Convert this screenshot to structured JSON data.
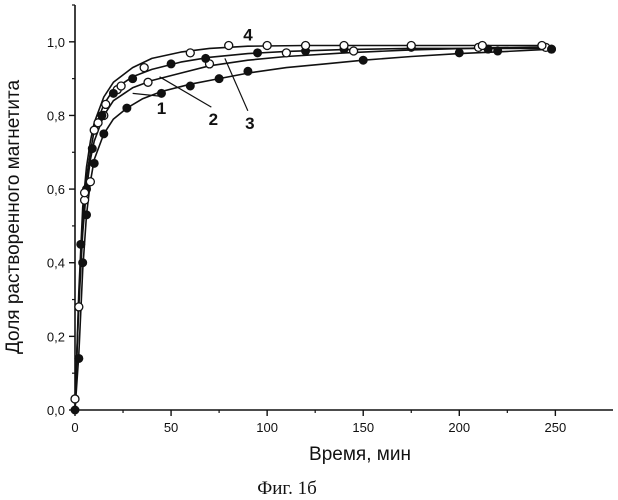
{
  "chart_data": {
    "type": "line",
    "xlabel": "Время, мин",
    "ylabel": "Доля растворенного магнетита",
    "caption": "Фиг. 1б",
    "xlim": [
      0,
      280
    ],
    "ylim": [
      0,
      1.1
    ],
    "x_ticks": [
      0,
      50,
      100,
      150,
      200,
      250
    ],
    "y_ticks": [
      0.0,
      0.2,
      0.4,
      0.6,
      0.8,
      1.0
    ],
    "x_tick_labels": [
      "0",
      "50",
      "100",
      "150",
      "200",
      "250"
    ],
    "y_tick_labels": [
      "0,0",
      "0,2",
      "0,4",
      "0,6",
      "0,8",
      "1,0"
    ],
    "grid": false,
    "series": [
      {
        "name": "1",
        "marker": "filled",
        "points": [
          [
            0,
            0.0
          ],
          [
            2,
            0.14
          ],
          [
            4,
            0.4
          ],
          [
            6,
            0.53
          ],
          [
            10,
            0.67
          ],
          [
            15,
            0.75
          ],
          [
            27,
            0.82
          ],
          [
            45,
            0.86
          ],
          [
            60,
            0.88
          ],
          [
            75,
            0.9
          ],
          [
            90,
            0.92
          ],
          [
            150,
            0.95
          ],
          [
            200,
            0.97
          ],
          [
            220,
            0.975
          ],
          [
            248,
            0.98
          ]
        ],
        "curve": [
          [
            0,
            0.0
          ],
          [
            2,
            0.15
          ],
          [
            4,
            0.38
          ],
          [
            6,
            0.53
          ],
          [
            8,
            0.62
          ],
          [
            10,
            0.68
          ],
          [
            15,
            0.75
          ],
          [
            20,
            0.79
          ],
          [
            27,
            0.82
          ],
          [
            35,
            0.845
          ],
          [
            45,
            0.865
          ],
          [
            60,
            0.885
          ],
          [
            75,
            0.9
          ],
          [
            90,
            0.915
          ],
          [
            110,
            0.93
          ],
          [
            130,
            0.94
          ],
          [
            150,
            0.95
          ],
          [
            175,
            0.96
          ],
          [
            200,
            0.968
          ],
          [
            225,
            0.974
          ],
          [
            248,
            0.98
          ]
        ]
      },
      {
        "name": "2",
        "marker": "open",
        "points": [
          [
            0,
            0.03
          ],
          [
            2,
            0.28
          ],
          [
            5,
            0.57
          ],
          [
            8,
            0.62
          ],
          [
            12,
            0.78
          ],
          [
            15,
            0.8
          ],
          [
            22,
            0.87
          ],
          [
            38,
            0.89
          ],
          [
            70,
            0.94
          ],
          [
            110,
            0.97
          ],
          [
            145,
            0.975
          ],
          [
            210,
            0.985
          ],
          [
            245,
            0.985
          ]
        ],
        "curve": [
          [
            0,
            0.03
          ],
          [
            2,
            0.28
          ],
          [
            4,
            0.48
          ],
          [
            6,
            0.6
          ],
          [
            8,
            0.68
          ],
          [
            10,
            0.73
          ],
          [
            15,
            0.8
          ],
          [
            20,
            0.84
          ],
          [
            30,
            0.875
          ],
          [
            40,
            0.895
          ],
          [
            55,
            0.915
          ],
          [
            70,
            0.935
          ],
          [
            90,
            0.95
          ],
          [
            110,
            0.96
          ],
          [
            140,
            0.97
          ],
          [
            175,
            0.978
          ],
          [
            210,
            0.983
          ],
          [
            245,
            0.986
          ]
        ]
      },
      {
        "name": "3",
        "marker": "filled",
        "points": [
          [
            3,
            0.45
          ],
          [
            6,
            0.6
          ],
          [
            9,
            0.71
          ],
          [
            14,
            0.8
          ],
          [
            20,
            0.86
          ],
          [
            30,
            0.9
          ],
          [
            50,
            0.94
          ],
          [
            68,
            0.955
          ],
          [
            95,
            0.97
          ],
          [
            120,
            0.975
          ],
          [
            140,
            0.98
          ],
          [
            175,
            0.985
          ],
          [
            215,
            0.98
          ],
          [
            248,
            0.98
          ]
        ],
        "curve": [
          [
            0,
            0.0
          ],
          [
            2,
            0.3
          ],
          [
            4,
            0.52
          ],
          [
            6,
            0.63
          ],
          [
            8,
            0.7
          ],
          [
            10,
            0.76
          ],
          [
            15,
            0.83
          ],
          [
            20,
            0.87
          ],
          [
            30,
            0.905
          ],
          [
            40,
            0.925
          ],
          [
            55,
            0.945
          ],
          [
            70,
            0.958
          ],
          [
            90,
            0.968
          ],
          [
            110,
            0.974
          ],
          [
            140,
            0.979
          ],
          [
            175,
            0.982
          ],
          [
            215,
            0.982
          ],
          [
            248,
            0.982
          ]
        ]
      },
      {
        "name": "4",
        "marker": "open",
        "points": [
          [
            5,
            0.59
          ],
          [
            10,
            0.76
          ],
          [
            16,
            0.83
          ],
          [
            24,
            0.88
          ],
          [
            36,
            0.93
          ],
          [
            60,
            0.97
          ],
          [
            80,
            0.99
          ],
          [
            100,
            0.99
          ],
          [
            120,
            0.99
          ],
          [
            140,
            0.99
          ],
          [
            175,
            0.99
          ],
          [
            212,
            0.99
          ],
          [
            243,
            0.99
          ]
        ],
        "curve": [
          [
            0,
            0.0
          ],
          [
            2,
            0.32
          ],
          [
            4,
            0.55
          ],
          [
            6,
            0.66
          ],
          [
            8,
            0.73
          ],
          [
            10,
            0.78
          ],
          [
            15,
            0.85
          ],
          [
            20,
            0.89
          ],
          [
            30,
            0.93
          ],
          [
            40,
            0.955
          ],
          [
            55,
            0.972
          ],
          [
            70,
            0.982
          ],
          [
            90,
            0.988
          ],
          [
            120,
            0.99
          ],
          [
            160,
            0.99
          ],
          [
            210,
            0.99
          ],
          [
            245,
            0.99
          ]
        ]
      }
    ],
    "annotations": [
      {
        "text": "4",
        "series": "4",
        "at": [
          90,
          1.02
        ]
      },
      {
        "text": "1",
        "series": "1",
        "at": [
          45,
          0.82
        ],
        "leader_to": [
          30,
          0.86
        ]
      },
      {
        "text": "2",
        "series": "2",
        "at": [
          72,
          0.79
        ],
        "leader_to": [
          44,
          0.905
        ]
      },
      {
        "text": "3",
        "series": "3",
        "at": [
          91,
          0.78
        ],
        "leader_to": [
          78,
          0.955
        ]
      }
    ]
  }
}
